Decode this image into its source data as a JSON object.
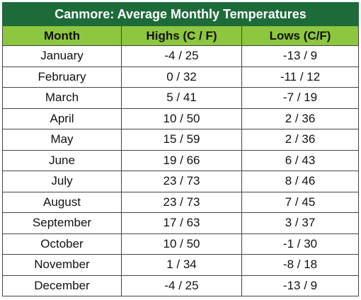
{
  "table": {
    "title": "Canmore: Average Monthly Temperatures",
    "headers": [
      "Month",
      "Highs (C / F)",
      "Lows (C/F)"
    ],
    "rows": [
      [
        "January",
        "-4 / 25",
        "-13 / 9"
      ],
      [
        "February",
        "0 / 32",
        "-11 / 12"
      ],
      [
        "March",
        "5 / 41",
        "-7 / 19"
      ],
      [
        "April",
        "10 / 50",
        "2 / 36"
      ],
      [
        "May",
        "15 / 59",
        "2 / 36"
      ],
      [
        "June",
        "19 / 66",
        "6 / 43"
      ],
      [
        "July",
        "23 / 73",
        "8 / 46"
      ],
      [
        "August",
        "23 / 73",
        "7 / 45"
      ],
      [
        "September",
        "17 / 63",
        "3 / 37"
      ],
      [
        "October",
        "10 / 50",
        "-1 / 30"
      ],
      [
        "November",
        "1 / 34",
        "-8 / 18"
      ],
      [
        "December",
        "-4 / 25",
        "-13 / 9"
      ]
    ]
  },
  "colors": {
    "title_bg": "#1e6b3a",
    "header_bg": "#8dc63f"
  }
}
